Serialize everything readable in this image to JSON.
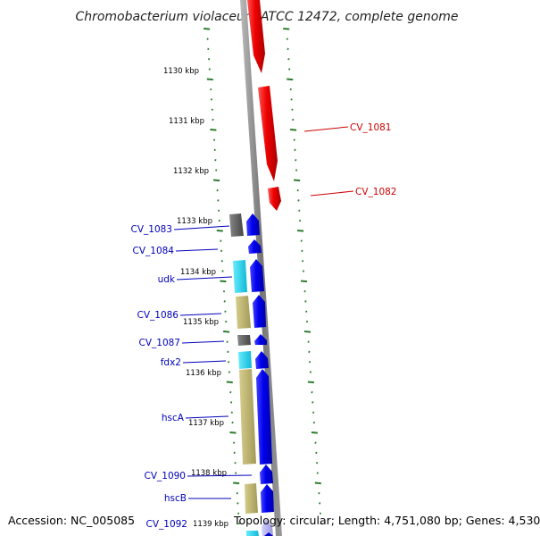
{
  "title": "Chromobacterium violaceum ATCC 12472, complete genome",
  "colors": {
    "red_gene": "#ee1111",
    "blue_gene": "#1111ee",
    "backbone": "#888888",
    "tick": "#2e7d32",
    "dark_gray": "#666666",
    "cyan": "#33d6ee",
    "khaki": "#bdb36f",
    "light_blue": "#aaaaee"
  },
  "kbp_labels": [
    "1130 kbp",
    "1131 kbp",
    "1132 kbp",
    "1133 kbp",
    "1134 kbp",
    "1135 kbp",
    "1136 kbp",
    "1137 kbp",
    "1138 kbp",
    "1139 kbp"
  ],
  "genes_right": [
    {
      "label": "CV_1081",
      "color": "#cc0000"
    },
    {
      "label": "CV_1082",
      "color": "#cc0000"
    }
  ],
  "genes_left": [
    {
      "label": "CV_1083",
      "color": "#0000bb"
    },
    {
      "label": "CV_1084",
      "color": "#0000bb"
    },
    {
      "label": "udk",
      "color": "#0000bb"
    },
    {
      "label": "CV_1086",
      "color": "#0000bb"
    },
    {
      "label": "CV_1087",
      "color": "#0000bb"
    },
    {
      "label": "fdx2",
      "color": "#0000bb"
    },
    {
      "label": "hscA",
      "color": "#0000bb"
    },
    {
      "label": "CV_1090",
      "color": "#0000bb"
    },
    {
      "label": "hscB",
      "color": "#0000bb"
    },
    {
      "label": "CV_1092",
      "color": "#0000bb"
    }
  ],
  "footer": {
    "accession": "Accession: NC_005085",
    "info": "Topology: circular; Length: 4,751,080 bp; Genes: 4,530"
  }
}
